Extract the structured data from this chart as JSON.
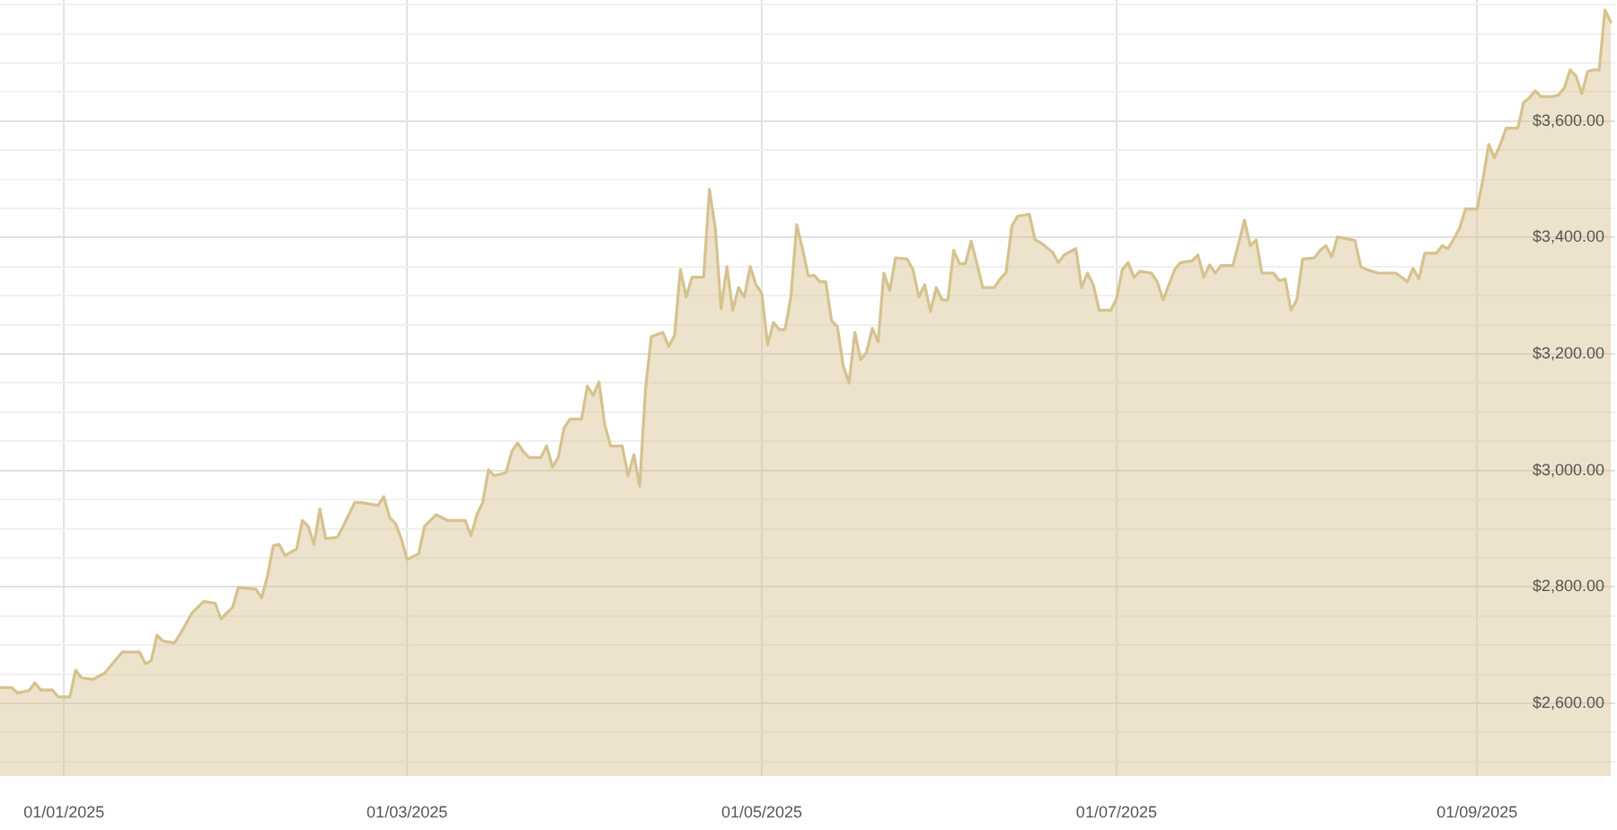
{
  "chart_data": {
    "type": "area",
    "x": [
      "2024-12-21",
      "2024-12-23",
      "2024-12-24",
      "2024-12-26",
      "2024-12-27",
      "2024-12-28",
      "2024-12-30",
      "2024-12-31",
      "2025-01-02",
      "2025-01-03",
      "2025-01-04",
      "2025-01-06",
      "2025-01-08",
      "2025-01-11",
      "2025-01-14",
      "2025-01-15",
      "2025-01-16",
      "2025-01-17",
      "2025-01-18",
      "2025-01-20",
      "2025-01-21",
      "2025-01-23",
      "2025-01-25",
      "2025-01-27",
      "2025-01-28",
      "2025-01-30",
      "2025-01-31",
      "2025-02-03",
      "2025-02-04",
      "2025-02-05",
      "2025-02-06",
      "2025-02-07",
      "2025-02-08",
      "2025-02-10",
      "2025-02-11",
      "2025-02-12",
      "2025-02-13",
      "2025-02-14",
      "2025-02-15",
      "2025-02-17",
      "2025-02-18",
      "2025-02-20",
      "2025-02-21",
      "2025-02-24",
      "2025-02-25",
      "2025-02-26",
      "2025-02-27",
      "2025-02-28",
      "2025-03-01",
      "2025-03-03",
      "2025-03-04",
      "2025-03-06",
      "2025-03-08",
      "2025-03-11",
      "2025-03-12",
      "2025-03-13",
      "2025-03-14",
      "2025-03-15",
      "2025-03-16",
      "2025-03-18",
      "2025-03-19",
      "2025-03-20",
      "2025-03-21",
      "2025-03-22",
      "2025-03-24",
      "2025-03-25",
      "2025-03-26",
      "2025-03-27",
      "2025-03-28",
      "2025-03-29",
      "2025-03-31",
      "2025-04-01",
      "2025-04-02",
      "2025-04-03",
      "2025-04-04",
      "2025-04-05",
      "2025-04-07",
      "2025-04-08",
      "2025-04-09",
      "2025-04-10",
      "2025-04-11",
      "2025-04-12",
      "2025-04-14",
      "2025-04-15",
      "2025-04-16",
      "2025-04-17",
      "2025-04-18",
      "2025-04-19",
      "2025-04-21",
      "2025-04-22",
      "2025-04-23",
      "2025-04-24",
      "2025-04-25",
      "2025-04-26",
      "2025-04-27",
      "2025-04-28",
      "2025-04-29",
      "2025-04-30",
      "2025-05-01",
      "2025-05-02",
      "2025-05-03",
      "2025-05-04",
      "2025-05-05",
      "2025-05-06",
      "2025-05-07",
      "2025-05-08",
      "2025-05-09",
      "2025-05-10",
      "2025-05-11",
      "2025-05-12",
      "2025-05-13",
      "2025-05-14",
      "2025-05-15",
      "2025-05-16",
      "2025-05-17",
      "2025-05-18",
      "2025-05-19",
      "2025-05-20",
      "2025-05-21",
      "2025-05-22",
      "2025-05-23",
      "2025-05-24",
      "2025-05-26",
      "2025-05-27",
      "2025-05-28",
      "2025-05-29",
      "2025-05-30",
      "2025-05-31",
      "2025-06-01",
      "2025-06-02",
      "2025-06-03",
      "2025-06-04",
      "2025-06-05",
      "2025-06-06",
      "2025-06-07",
      "2025-06-08",
      "2025-06-10",
      "2025-06-11",
      "2025-06-12",
      "2025-06-13",
      "2025-06-14",
      "2025-06-16",
      "2025-06-17",
      "2025-06-18",
      "2025-06-20",
      "2025-06-21",
      "2025-06-22",
      "2025-06-24",
      "2025-06-25",
      "2025-06-26",
      "2025-06-27",
      "2025-06-28",
      "2025-06-30",
      "2025-07-01",
      "2025-07-02",
      "2025-07-03",
      "2025-07-04",
      "2025-07-05",
      "2025-07-07",
      "2025-07-08",
      "2025-07-09",
      "2025-07-10",
      "2025-07-11",
      "2025-07-12",
      "2025-07-14",
      "2025-07-15",
      "2025-07-16",
      "2025-07-17",
      "2025-07-18",
      "2025-07-19",
      "2025-07-21",
      "2025-07-22",
      "2025-07-23",
      "2025-07-24",
      "2025-07-25",
      "2025-07-26",
      "2025-07-28",
      "2025-07-29",
      "2025-07-30",
      "2025-07-31",
      "2025-08-01",
      "2025-08-02",
      "2025-08-04",
      "2025-08-05",
      "2025-08-06",
      "2025-08-07",
      "2025-08-08",
      "2025-08-11",
      "2025-08-12",
      "2025-08-13",
      "2025-08-15",
      "2025-08-18",
      "2025-08-19",
      "2025-08-20",
      "2025-08-21",
      "2025-08-22",
      "2025-08-23",
      "2025-08-25",
      "2025-08-26",
      "2025-08-27",
      "2025-08-28",
      "2025-08-29",
      "2025-08-30",
      "2025-09-01",
      "2025-09-02",
      "2025-09-03",
      "2025-09-04",
      "2025-09-05",
      "2025-09-06",
      "2025-09-08",
      "2025-09-09",
      "2025-09-10",
      "2025-09-11",
      "2025-09-12",
      "2025-09-14",
      "2025-09-15",
      "2025-09-16",
      "2025-09-17",
      "2025-09-18",
      "2025-09-19",
      "2025-09-20",
      "2025-09-21",
      "2025-09-22",
      "2025-09-23",
      "2025-09-24"
    ],
    "series": [
      {
        "color": "#d6c28e",
        "values": [
          2627,
          2627,
          2618,
          2622,
          2635,
          2623,
          2623,
          2611,
          2611,
          2657,
          2644,
          2641,
          2652,
          2688,
          2688,
          2668,
          2673,
          2717,
          2707,
          2704,
          2719,
          2755,
          2775,
          2772,
          2745,
          2765,
          2799,
          2796,
          2781,
          2819,
          2871,
          2873,
          2854,
          2865,
          2914,
          2904,
          2873,
          2934,
          2883,
          2885,
          2904,
          2945,
          2945,
          2940,
          2955,
          2919,
          2909,
          2883,
          2847,
          2857,
          2904,
          2924,
          2914,
          2914,
          2888,
          2924,
          2945,
          3001,
          2991,
          2996,
          3032,
          3047,
          3032,
          3022,
          3022,
          3042,
          3006,
          3022,
          3073,
          3088,
          3088,
          3145,
          3129,
          3152,
          3078,
          3042,
          3042,
          2991,
          3027,
          2973,
          3140,
          3230,
          3237,
          3213,
          3232,
          3345,
          3298,
          3332,
          3332,
          3483,
          3416,
          3278,
          3350,
          3275,
          3314,
          3298,
          3350,
          3319,
          3304,
          3216,
          3254,
          3242,
          3242,
          3298,
          3422,
          3381,
          3334,
          3335,
          3324,
          3324,
          3257,
          3247,
          3180,
          3150,
          3237,
          3190,
          3203,
          3244,
          3221,
          3339,
          3309,
          3365,
          3363,
          3345,
          3298,
          3319,
          3273,
          3314,
          3293,
          3293,
          3378,
          3355,
          3355,
          3394,
          3355,
          3314,
          3314,
          3329,
          3340,
          3420,
          3437,
          3440,
          3396,
          3391,
          3375,
          3357,
          3370,
          3381,
          3314,
          3339,
          3319,
          3275,
          3275,
          3295,
          3345,
          3357,
          3332,
          3342,
          3339,
          3324,
          3293,
          3319,
          3345,
          3357,
          3360,
          3370,
          3332,
          3353,
          3339,
          3352,
          3352,
          3390,
          3430,
          3386,
          3396,
          3339,
          3339,
          3326,
          3329,
          3275,
          3293,
          3363,
          3365,
          3378,
          3386,
          3367,
          3401,
          3395,
          3350,
          3345,
          3339,
          3339,
          3332,
          3324,
          3347,
          3329,
          3373,
          3373,
          3386,
          3381,
          3398,
          3416,
          3449,
          3449,
          3500,
          3560,
          3537,
          3560,
          3588,
          3588,
          3632,
          3640,
          3652,
          3642,
          3642,
          3645,
          3657,
          3688,
          3678,
          3647,
          3685,
          3688,
          3688,
          3791,
          3770
        ]
      }
    ],
    "xlim": [
      "2024-12-21",
      "2025-09-24T18:00"
    ],
    "xticks": [
      {
        "value": "2025-01-01",
        "label": "01/01/2025"
      },
      {
        "value": "2025-03-01",
        "label": "01/03/2025"
      },
      {
        "value": "2025-05-01",
        "label": "01/05/2025"
      },
      {
        "value": "2025-07-01",
        "label": "01/07/2025"
      },
      {
        "value": "2025-09-01",
        "label": "01/09/2025"
      }
    ],
    "ylim": [
      2475,
      3808
    ],
    "yticks": [
      {
        "value": 2500,
        "label": null
      },
      {
        "value": 2550,
        "label": null
      },
      {
        "value": 2600,
        "label": "$2,600.00"
      },
      {
        "value": 2650,
        "label": null
      },
      {
        "value": 2700,
        "label": null
      },
      {
        "value": 2750,
        "label": null
      },
      {
        "value": 2800,
        "label": "$2,800.00"
      },
      {
        "value": 2850,
        "label": null
      },
      {
        "value": 2900,
        "label": null
      },
      {
        "value": 2950,
        "label": null
      },
      {
        "value": 3000,
        "label": "$3,000.00"
      },
      {
        "value": 3050,
        "label": null
      },
      {
        "value": 3100,
        "label": null
      },
      {
        "value": 3150,
        "label": null
      },
      {
        "value": 3200,
        "label": "$3,200.00"
      },
      {
        "value": 3250,
        "label": null
      },
      {
        "value": 3300,
        "label": null
      },
      {
        "value": 3350,
        "label": null
      },
      {
        "value": 3400,
        "label": "$3,400.00"
      },
      {
        "value": 3450,
        "label": null
      },
      {
        "value": 3500,
        "label": null
      },
      {
        "value": 3550,
        "label": null
      },
      {
        "value": 3600,
        "label": "$3,600.00"
      },
      {
        "value": 3650,
        "label": null
      },
      {
        "value": 3700,
        "label": null
      },
      {
        "value": 3750,
        "label": null
      },
      {
        "value": 3800,
        "label": null
      }
    ],
    "grid": true,
    "legend": false,
    "marker": "none"
  }
}
